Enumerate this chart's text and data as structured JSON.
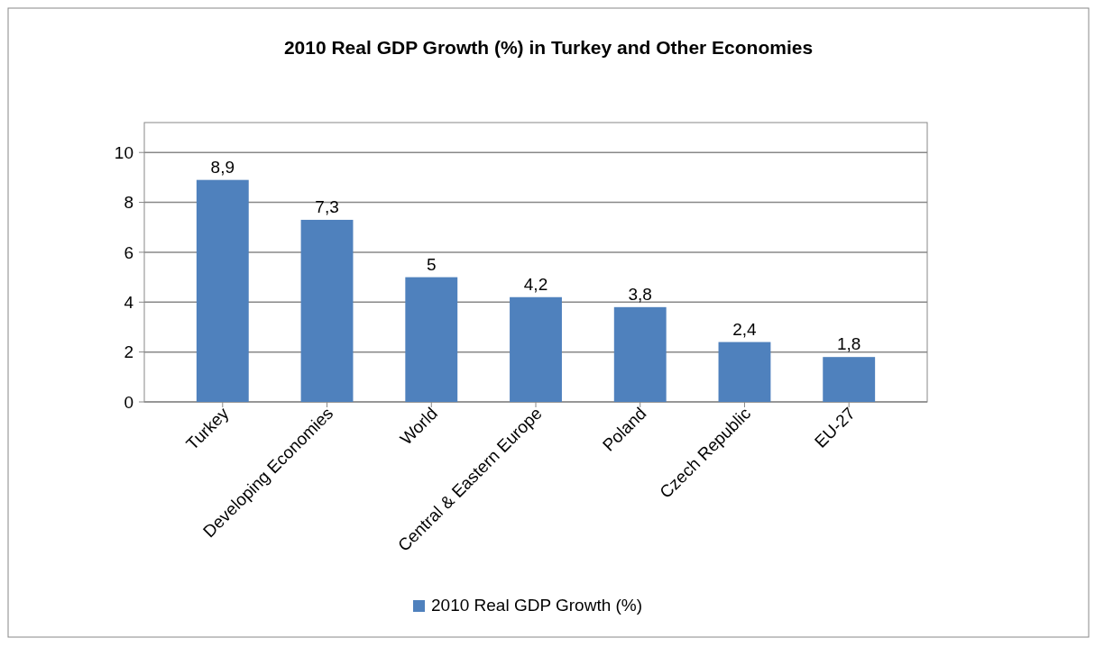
{
  "chart_data": {
    "type": "bar",
    "title": "2010 Real GDP Growth (%) in Turkey and Other Economies",
    "categories": [
      "Turkey",
      "Developing Economies",
      "World",
      "Central & Eastern Europe",
      "Poland",
      "Czech Republic",
      "EU-27"
    ],
    "series": [
      {
        "name": "2010 Real GDP Growth (%)",
        "color": "#4f81bd",
        "values": [
          8.9,
          7.3,
          5,
          4.2,
          3.8,
          2.4,
          1.8
        ],
        "value_labels": [
          "8,9",
          "7,3",
          "5",
          "4,2",
          "3,8",
          "2,4",
          "1,8"
        ]
      }
    ],
    "ylim": [
      0,
      11.2
    ],
    "yticks": [
      0,
      2,
      4,
      6,
      8,
      10
    ],
    "grid": "y",
    "legend": "bottom"
  }
}
